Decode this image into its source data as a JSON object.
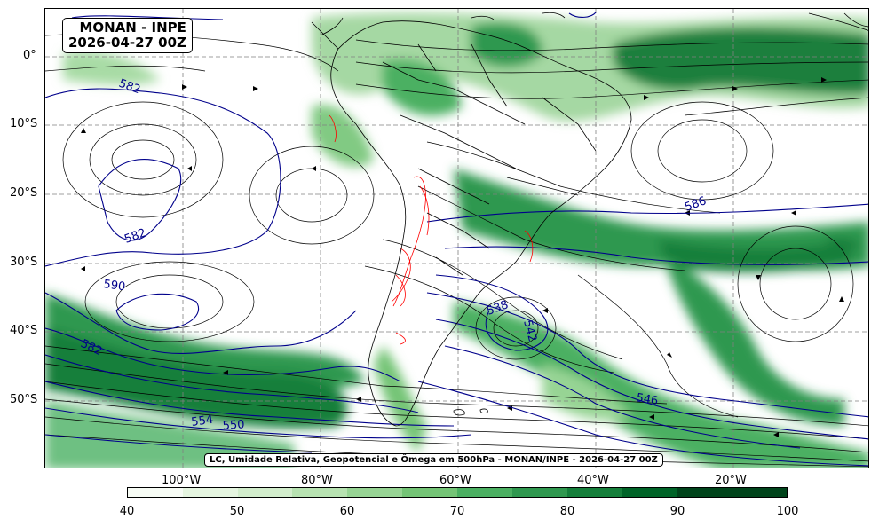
{
  "title": {
    "line1": "MONAN - INPE",
    "line2": "2026-04-27 00Z"
  },
  "caption": "LC, Umidade Relativa, Geopotencial e Ômega em 500hPa - MONAN/INPE - 2026-04-27 00Z",
  "lat_labels": [
    "0°",
    "10°S",
    "20°S",
    "30°S",
    "40°S",
    "50°S"
  ],
  "lon_labels": [
    "100°W",
    "80°W",
    "60°W",
    "40°W",
    "20°W"
  ],
  "contour_labels": [
    "582",
    "582",
    "590",
    "582",
    "586",
    "538",
    "542",
    "546",
    "554",
    "550"
  ],
  "colorbar": {
    "ticks": [
      "40",
      "50",
      "60",
      "70",
      "80",
      "90",
      "100"
    ],
    "colors": [
      "#f7fcf5",
      "#e5f5e0",
      "#d2edcc",
      "#b7e2b1",
      "#97d494",
      "#74c476",
      "#4bb062",
      "#2f984f",
      "#157f3b",
      "#006428",
      "#00441b",
      "#00441b"
    ]
  },
  "colors": {
    "humidity_dark": "#0b6b2e",
    "humidity_light": "#a8dba5",
    "geopotential": "#00008b",
    "omega": "#ff0000",
    "streamline": "#000000"
  }
}
